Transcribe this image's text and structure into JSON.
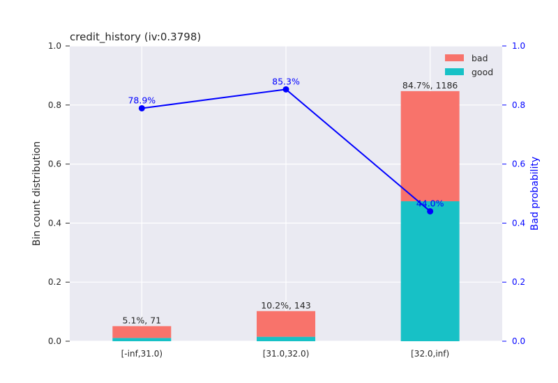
{
  "chart_data": {
    "type": "bar",
    "title": "credit_history  (iv:0.3798)",
    "categories": [
      "[-inf,31.0)",
      "[31.0,32.0)",
      "[32.0,inf)"
    ],
    "series": [
      {
        "name": "good",
        "values": [
          0.011,
          0.015,
          0.474
        ],
        "color": "#17c1c6"
      },
      {
        "name": "bad",
        "values": [
          0.04,
          0.087,
          0.373
        ],
        "color": "#f8736b"
      }
    ],
    "bar_labels": [
      "5.1%, 71",
      "10.2%, 143",
      "84.7%, 1186"
    ],
    "line": {
      "name": "Bad probability",
      "values": [
        0.789,
        0.853,
        0.44
      ],
      "labels": [
        "78.9%",
        "85.3%",
        "44.0%"
      ],
      "color": "#0000ff"
    },
    "ylabel": "Bin count distribution",
    "ylabel_right": "Bad probability",
    "ylim": [
      0,
      1
    ],
    "ylim_right": [
      0,
      1
    ],
    "yticks": [
      "0.0",
      "0.2",
      "0.4",
      "0.6",
      "0.8",
      "1.0"
    ],
    "grid": true,
    "legend_position": "top-right",
    "colors": {
      "background": "#eaeaf2",
      "grid": "#ffffff"
    }
  }
}
